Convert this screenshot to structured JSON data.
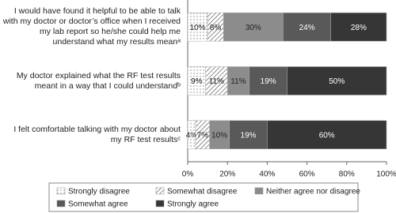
{
  "chart_data": {
    "type": "stacked-bar-horizontal",
    "categories": [
      "I would have found it helpful to be able to talk with my doctor or doctor’s office when I received my lab report so he/she could help me understand what my results meanᵃ",
      "My doctor explained what the RF test results meant in a way that I could understandᵇ",
      "I felt comfortable talking with my doctor about my RF test resultsᶜ"
    ],
    "series": [
      {
        "name": "Strongly disagree",
        "color": "#ffffff",
        "pattern": "dots",
        "values": [
          10,
          9,
          4
        ],
        "value_labels": [
          "10%",
          "9%",
          "4%"
        ]
      },
      {
        "name": "Somewhat disagree",
        "color": "#ffffff",
        "pattern": "hatch",
        "values": [
          8,
          11,
          7
        ],
        "value_labels": [
          "8%",
          "11%",
          "7%"
        ]
      },
      {
        "name": "Neither agree nor disagree",
        "color": "#8c8c8c",
        "values": [
          30,
          11,
          10
        ],
        "value_labels": [
          "30%",
          "11%",
          "10%"
        ]
      },
      {
        "name": "Somewhat agree",
        "color": "#595959",
        "values": [
          24,
          19,
          19
        ],
        "value_labels": [
          "24%",
          "19%",
          "19%"
        ]
      },
      {
        "name": "Strongly agree",
        "color": "#363636",
        "values": [
          28,
          50,
          60
        ],
        "value_labels": [
          "28%",
          "50%",
          "60%"
        ]
      }
    ],
    "xlim": [
      0,
      100
    ],
    "xticks": [
      {
        "value": 0,
        "label": "0%"
      },
      {
        "value": 20,
        "label": "20%"
      },
      {
        "value": 40,
        "label": "40%"
      },
      {
        "value": 60,
        "label": "60%"
      },
      {
        "value": 80,
        "label": "80%"
      },
      {
        "value": 100,
        "label": "100%"
      }
    ]
  }
}
